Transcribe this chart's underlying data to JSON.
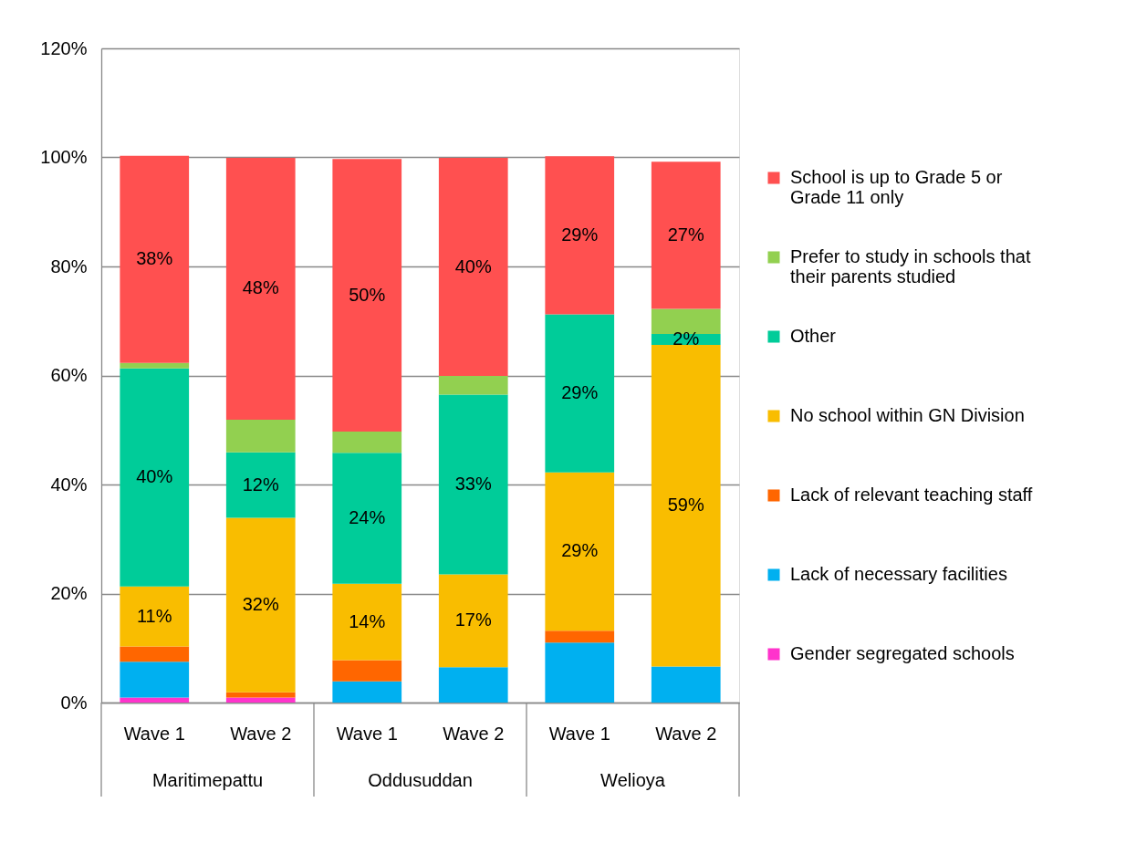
{
  "chart_data": {
    "type": "bar",
    "stacked": true,
    "categories": [
      "Wave 1",
      "Wave 2",
      "Wave 1",
      "Wave 2",
      "Wave 1",
      "Wave 2"
    ],
    "annotations": [
      "Maritimepattu",
      "Oddusuddan",
      "Welioya"
    ],
    "ylim": [
      0,
      120
    ],
    "yticks": [
      {
        "value": 0,
        "label": "0%"
      },
      {
        "value": 20,
        "label": "20%"
      },
      {
        "value": 40,
        "label": "40%"
      },
      {
        "value": 60,
        "label": "60%"
      },
      {
        "value": 80,
        "label": "80%"
      },
      {
        "value": 100,
        "label": "100%"
      },
      {
        "value": 120,
        "label": "120%"
      }
    ],
    "grid": "y",
    "legend": "right",
    "series": [
      {
        "name": "Gender segregated schools",
        "color": "#ff33cc",
        "values": [
          0.9,
          0.9,
          null,
          null,
          null,
          null
        ]
      },
      {
        "name": "Lack of necessary facilities",
        "color": "#00b0f0",
        "values": [
          6.6,
          null,
          3.9,
          6.5,
          11.0,
          6.6
        ]
      },
      {
        "name": "Lack of relevant teaching staff",
        "color": "#ff6600",
        "values": [
          2.8,
          1.0,
          3.9,
          null,
          2.2,
          null
        ]
      },
      {
        "name": "No school within GN Division",
        "color": "#f9bd00",
        "values": [
          11,
          32,
          14,
          17,
          29,
          59
        ],
        "value_labels": [
          "11%",
          "32%",
          "14%",
          "17%",
          "29%",
          "59%"
        ]
      },
      {
        "name": "Other",
        "color": "#00cc99",
        "values": [
          40,
          12,
          24,
          33,
          29,
          2
        ],
        "value_labels": [
          "40%",
          "12%",
          "24%",
          "33%",
          "29%",
          "2%"
        ]
      },
      {
        "name": "Prefer to study in schools that their parents studied",
        "color": "#92d050",
        "values": [
          1.0,
          6.0,
          3.9,
          3.4,
          null,
          4.6
        ]
      },
      {
        "name": "School is up to Grade 5 or Grade 11 only",
        "color": "#ff5050",
        "values": [
          38,
          48,
          50,
          40,
          29,
          27
        ],
        "value_labels": [
          "38%",
          "48%",
          "50%",
          "40%",
          "29%",
          "27%"
        ]
      }
    ]
  }
}
